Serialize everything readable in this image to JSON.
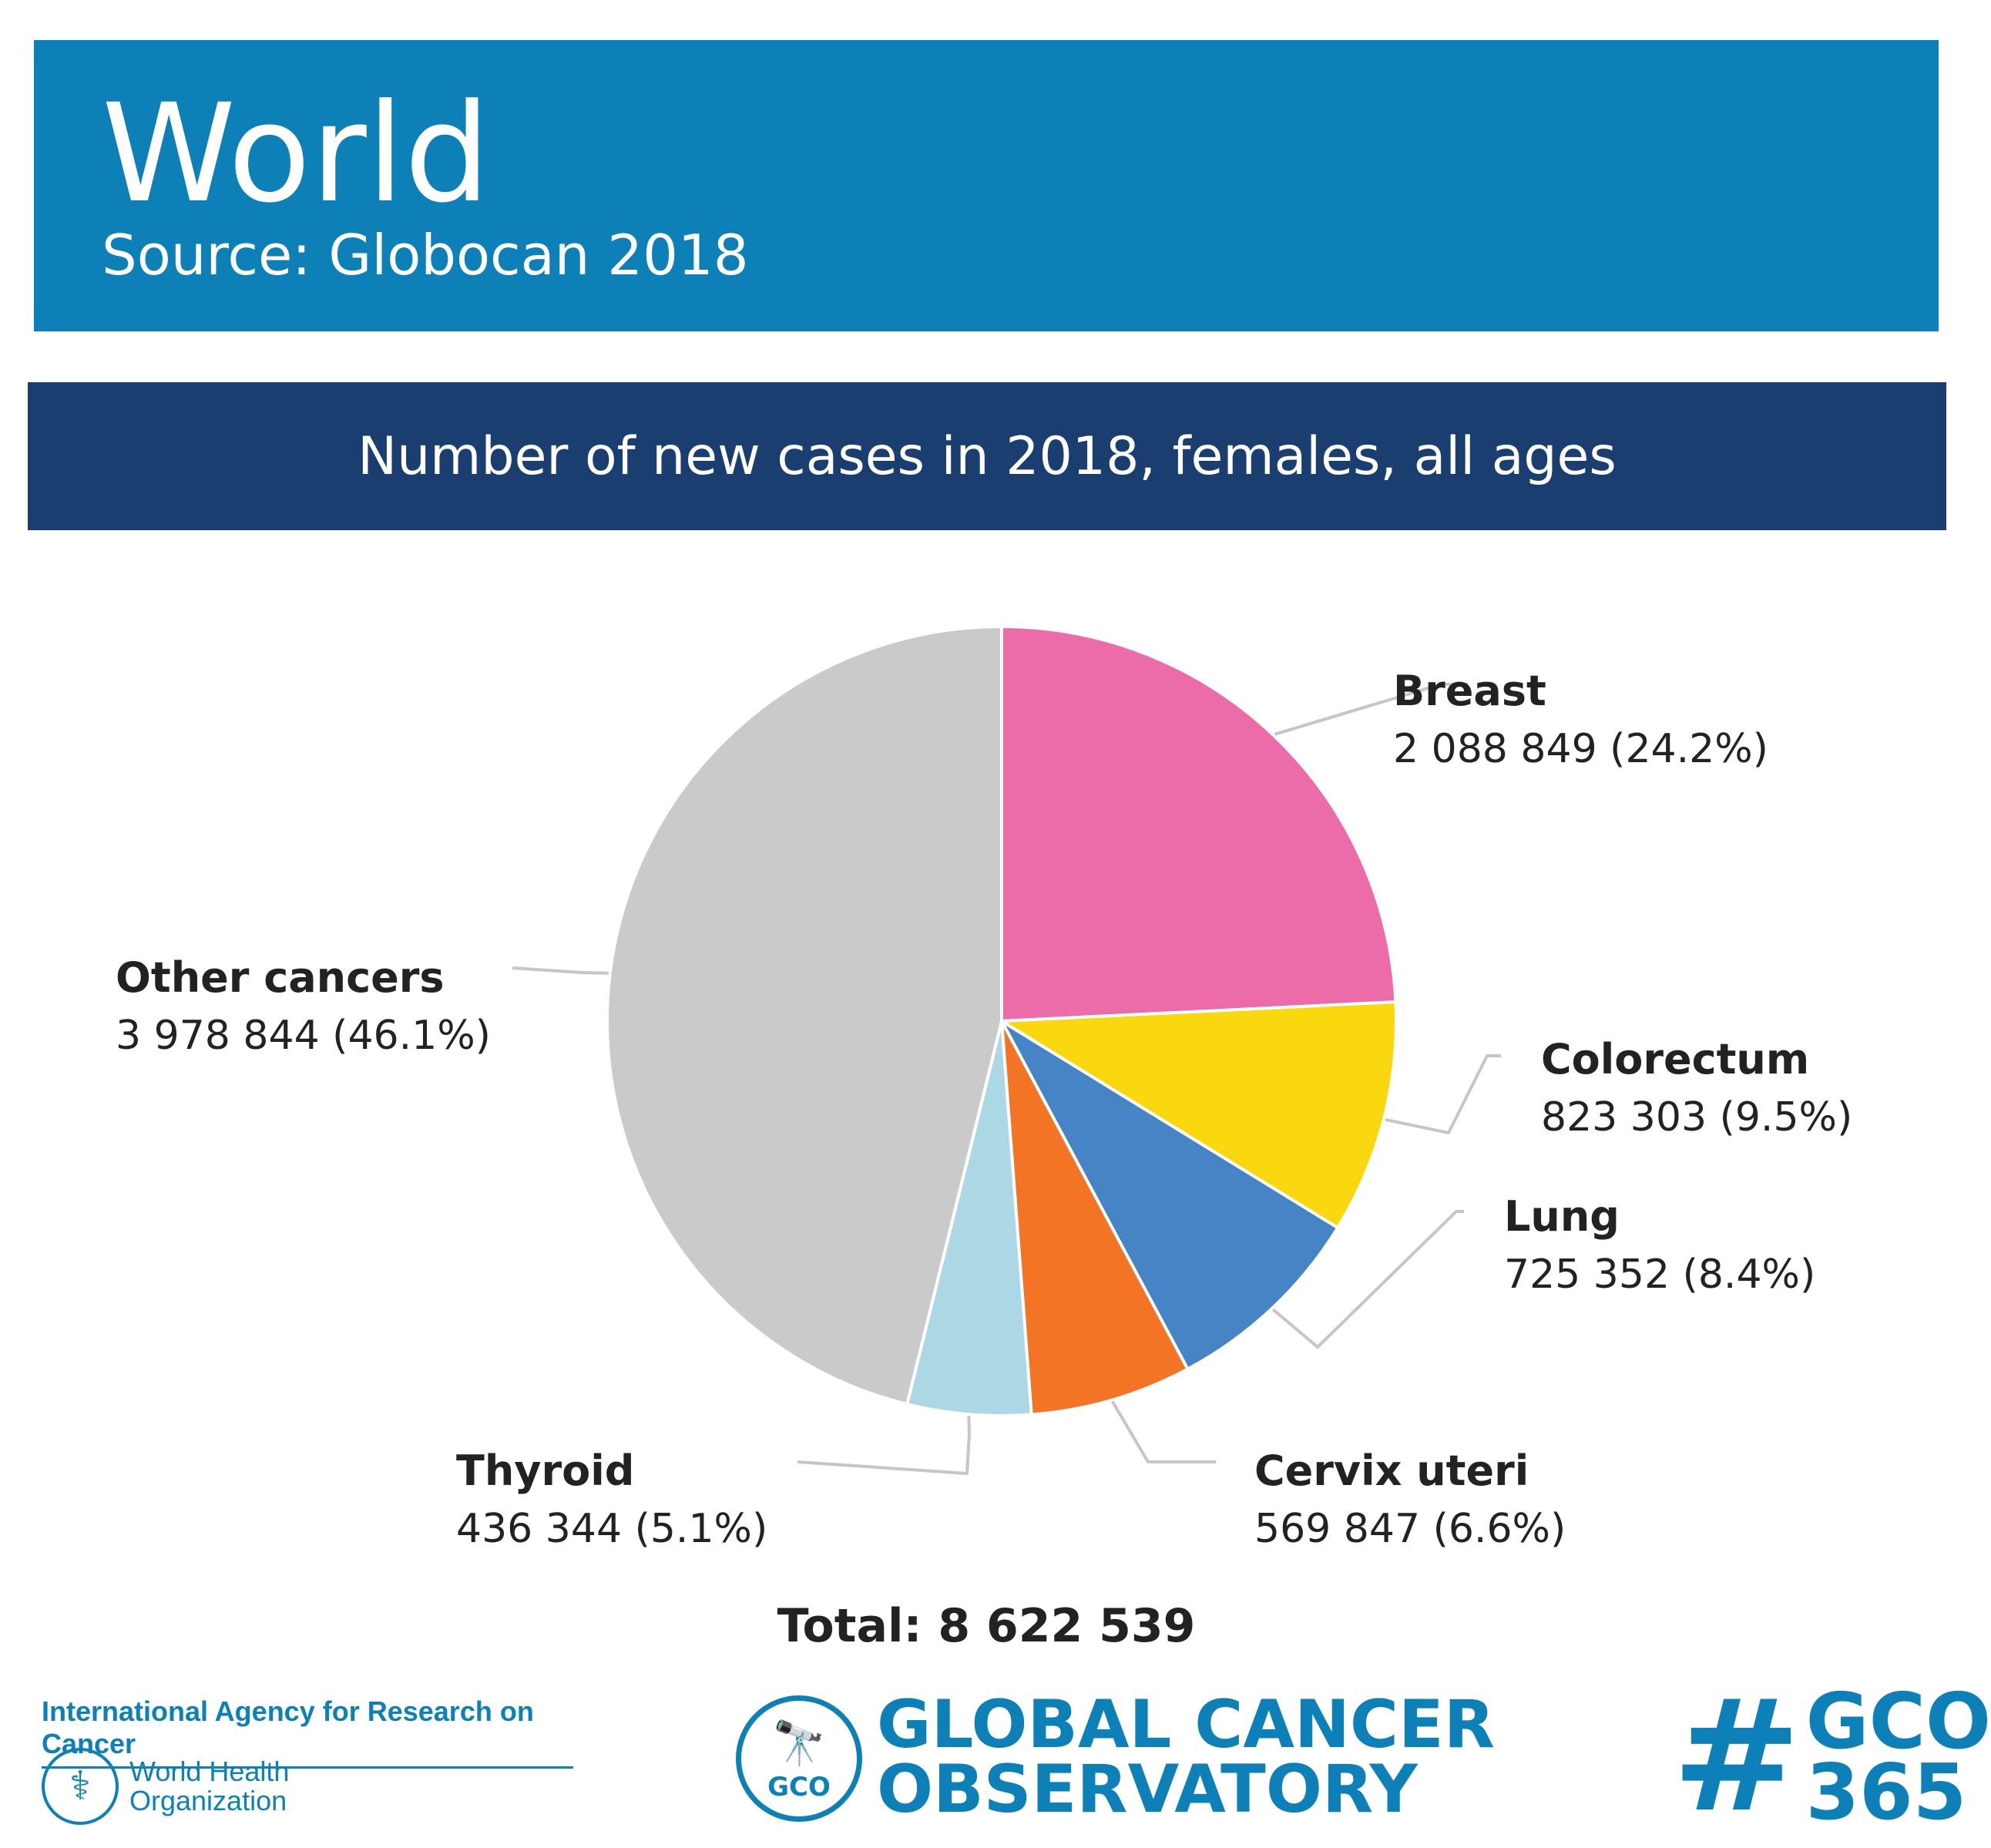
{
  "header": {
    "title": "World",
    "subtitle": "Source: Globocan 2018"
  },
  "chart_title": "Number of new cases in 2018, females, all ages",
  "chart_data": {
    "type": "pie",
    "title": "Number of new cases in 2018, females, all ages",
    "total_label": "Total: 8 622 539",
    "total": 8622539,
    "slices": [
      {
        "name": "Breast",
        "value": 2088849,
        "pct": 24.2,
        "value_label": "2 088 849 (24.2%)",
        "color": "#ec6ca9"
      },
      {
        "name": "Colorectum",
        "value": 823303,
        "pct": 9.5,
        "value_label": "823 303 (9.5%)",
        "color": "#f9d80f"
      },
      {
        "name": "Lung",
        "value": 725352,
        "pct": 8.4,
        "value_label": "725 352 (8.4%)",
        "color": "#4684c5"
      },
      {
        "name": "Cervix uteri",
        "value": 569847,
        "pct": 6.6,
        "value_label": "569 847 (6.6%)",
        "color": "#f27424"
      },
      {
        "name": "Thyroid",
        "value": 436344,
        "pct": 5.1,
        "value_label": "436 344 (5.1%)",
        "color": "#acd8e6"
      },
      {
        "name": "Other cancers",
        "value": 3978844,
        "pct": 46.1,
        "value_label": "3 978 844 (46.1%)",
        "color": "#c9cac9"
      }
    ]
  },
  "footer": {
    "iarc": "International Agency for Research on Cancer",
    "who_line1": "World Health",
    "who_line2": "Organization",
    "gco_badge": "GCO",
    "gco_line1": "GLOBAL CANCER",
    "gco_line2": "OBSERVATORY",
    "hashtag_symbol": "#",
    "hashtag_line1": "GCO",
    "hashtag_line2": "365"
  }
}
